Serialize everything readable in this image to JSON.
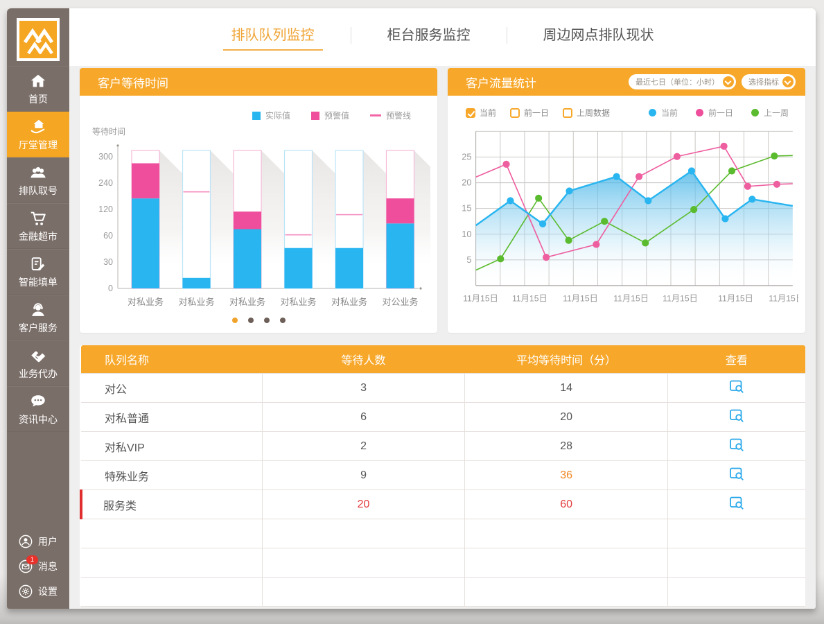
{
  "sidebar": {
    "items": [
      {
        "label": "首页",
        "icon": "home-icon",
        "active": false
      },
      {
        "label": "厅堂管理",
        "icon": "hall-icon",
        "active": true
      },
      {
        "label": "排队取号",
        "icon": "queue-icon",
        "active": false
      },
      {
        "label": "金融超市",
        "icon": "cart-icon",
        "active": false
      },
      {
        "label": "智能填单",
        "icon": "form-icon",
        "active": false
      },
      {
        "label": "客户服务",
        "icon": "service-icon",
        "active": false
      },
      {
        "label": "业务代办",
        "icon": "handshake-icon",
        "active": false
      },
      {
        "label": "资讯中心",
        "icon": "chat-icon",
        "active": false
      }
    ],
    "footer_items": [
      {
        "label": "用户",
        "icon": "user-icon",
        "badge": ""
      },
      {
        "label": "消息",
        "icon": "mail-icon",
        "badge": "1"
      },
      {
        "label": "设置",
        "icon": "gear-icon",
        "badge": ""
      }
    ]
  },
  "tabs": [
    {
      "label": "排队队列监控",
      "active": true
    },
    {
      "label": "柜台服务监控",
      "active": false
    },
    {
      "label": "周边网点排队现状",
      "active": false
    }
  ],
  "wait_panel": {
    "title": "客户等待时间",
    "y_axis_label": "等待时间",
    "legend": [
      {
        "label": "实际值",
        "color": "#29B5F0",
        "type": "square"
      },
      {
        "label": "预警值",
        "color": "#EE4E9B",
        "type": "square"
      },
      {
        "label": "预警线",
        "color": "#F266A6",
        "type": "line"
      }
    ],
    "pager_dots": {
      "count": 4,
      "active_index": 0,
      "active_color": "#F0A32C",
      "color": "#6E6058"
    }
  },
  "flow_panel": {
    "title": "客户流量统计",
    "dropdowns": [
      {
        "label": "最近七日（单位：小时）"
      },
      {
        "label": "选择指标"
      }
    ],
    "checkboxes": [
      {
        "label": "当前",
        "checked": true
      },
      {
        "label": "前一日",
        "checked": false
      },
      {
        "label": "上周数据",
        "checked": false
      }
    ],
    "legend": [
      {
        "label": "当前",
        "color": "#29B5F0"
      },
      {
        "label": "前一日",
        "color": "#EE4E9B"
      },
      {
        "label": "上一周",
        "color": "#5BBB2F"
      }
    ]
  },
  "table": {
    "headers": [
      "队列名称",
      "等待人数",
      "平均等待时间（分）",
      "查看"
    ],
    "rows": [
      {
        "name": "对公",
        "waiting": "3",
        "avg_time": "14",
        "waiting_color": "",
        "avg_color": "",
        "highlight": false
      },
      {
        "name": "对私普通",
        "waiting": "6",
        "avg_time": "20",
        "waiting_color": "",
        "avg_color": "",
        "highlight": false
      },
      {
        "name": "对私VIP",
        "waiting": "2",
        "avg_time": "28",
        "waiting_color": "",
        "avg_color": "",
        "highlight": false
      },
      {
        "name": "特殊业务",
        "waiting": "9",
        "avg_time": "36",
        "waiting_color": "",
        "avg_color": "#F0841F",
        "highlight": false
      },
      {
        "name": "服务类",
        "waiting": "20",
        "avg_time": "60",
        "waiting_color": "#E23A3A",
        "avg_color": "#E23A3A",
        "highlight": true
      }
    ],
    "empty_row_count": 3
  },
  "chart_data": [
    {
      "type": "bar",
      "title": "客户等待时间",
      "ylabel": "等待时间",
      "yticks": [
        0,
        30,
        60,
        120,
        240,
        300
      ],
      "axis_note": "non-linear y axis, tick labels evenly spaced",
      "categories": [
        "对私业务",
        "对私业务",
        "对私业务",
        "对私业务",
        "对私业务",
        "对公业务"
      ],
      "series": [
        {
          "name": "实际值",
          "color": "#29B5F0",
          "values": [
            170,
            12,
            75,
            46,
            46,
            88
          ]
        },
        {
          "name": "预警值",
          "color": "#EE4E9B",
          "values": [
            285,
            null,
            115,
            null,
            null,
            170
          ]
        },
        {
          "name": "预警线",
          "color": "#F48FC0",
          "values": [
            null,
            200,
            null,
            62,
            108,
            null
          ]
        }
      ],
      "bar_outline_colors": [
        "#F6B9D8",
        "#BCE4F8",
        "#F6B9D8",
        "#BCE4F8",
        "#BCE4F8",
        "#F6B9D8"
      ]
    },
    {
      "type": "line",
      "title": "客户流量统计",
      "ylim": [
        0,
        30
      ],
      "yticks": [
        5,
        10,
        15,
        20,
        25
      ],
      "x_labels": [
        "11月15日",
        "11月15日",
        "11月15日",
        "11月15日",
        "11月15日",
        "11月15日",
        "11月15日"
      ],
      "x_label_pos": [
        1.5,
        17,
        33,
        49,
        64.5,
        82,
        98
      ],
      "grid_columns": 13,
      "series": [
        {
          "name": "当前",
          "color": "#29B5F0",
          "area": true,
          "points": [
            [
              0,
              11.7
            ],
            [
              10.9,
              16.5
            ],
            [
              21.1,
              12
            ],
            [
              29.5,
              18.4
            ],
            [
              44.4,
              21.2
            ],
            [
              54.4,
              16.5
            ],
            [
              68.1,
              22.3
            ],
            [
              78.7,
              13
            ],
            [
              87.2,
              16.8
            ],
            [
              100,
              15.5
            ]
          ]
        },
        {
          "name": "前一日",
          "color": "#EE5FA0",
          "area": false,
          "points": [
            [
              0,
              21.1
            ],
            [
              9.6,
              23.6
            ],
            [
              22.2,
              5.5
            ],
            [
              38,
              8
            ],
            [
              51.5,
              21.2
            ],
            [
              63.5,
              25.1
            ],
            [
              78.3,
              27.1
            ],
            [
              85.8,
              19.3
            ],
            [
              95,
              19.7
            ],
            [
              100,
              19.8
            ]
          ]
        },
        {
          "name": "上一周",
          "color": "#5BBB2F",
          "area": false,
          "points": [
            [
              0,
              3
            ],
            [
              7.8,
              5.2
            ],
            [
              19.8,
              17
            ],
            [
              29.3,
              8.8
            ],
            [
              40.6,
              12.5
            ],
            [
              53.5,
              8.3
            ],
            [
              68.8,
              14.8
            ],
            [
              80.8,
              22.3
            ],
            [
              94.2,
              25.2
            ],
            [
              100,
              25.3
            ]
          ]
        }
      ]
    }
  ]
}
